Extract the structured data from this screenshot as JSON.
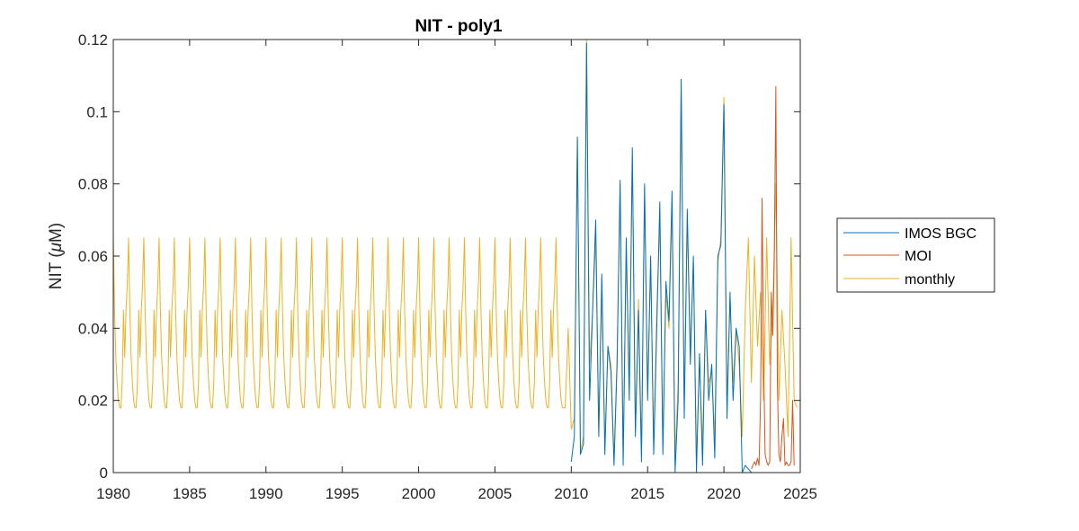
{
  "chart_data": {
    "type": "line",
    "title": "NIT - poly1",
    "ylabel": "NIT (μM)",
    "ylabel_parts": {
      "before": "NIT (",
      "mu": "μ",
      "after": "M)"
    },
    "xlabel": "",
    "xlim": [
      1980,
      2025
    ],
    "ylim": [
      0,
      0.12
    ],
    "x_ticks": [
      1980,
      1985,
      1990,
      1995,
      2000,
      2005,
      2010,
      2015,
      2020,
      2025
    ],
    "y_ticks": [
      0,
      0.02,
      0.04,
      0.06,
      0.08,
      0.1,
      0.12
    ],
    "y_tick_labels": [
      "0",
      "0.02",
      "0.04",
      "0.06",
      "0.08",
      "0.1",
      "0.12"
    ],
    "grid": false,
    "legend_position": "outside-right",
    "series": [
      {
        "name": "IMOS BGC",
        "color": "#0072BD",
        "x": [
          2010.0,
          2010.2,
          2010.4,
          2010.6,
          2010.8,
          2011.0,
          2011.2,
          2011.4,
          2011.6,
          2011.8,
          2012.0,
          2012.2,
          2012.4,
          2012.6,
          2012.8,
          2013.0,
          2013.2,
          2013.4,
          2013.6,
          2013.8,
          2014.0,
          2014.2,
          2014.4,
          2014.6,
          2014.8,
          2015.0,
          2015.2,
          2015.4,
          2015.6,
          2015.8,
          2016.0,
          2016.2,
          2016.4,
          2016.6,
          2016.8,
          2017.0,
          2017.2,
          2017.4,
          2017.6,
          2017.8,
          2018.0,
          2018.2,
          2018.4,
          2018.6,
          2018.8,
          2019.0,
          2019.2,
          2019.4,
          2019.6,
          2019.8,
          2020.0,
          2020.2,
          2020.4,
          2020.6,
          2020.8,
          2021.0,
          2021.2,
          2021.4,
          2021.6,
          2021.8
        ],
        "y": [
          0.003,
          0.01,
          0.093,
          0.005,
          0.008,
          0.119,
          0.02,
          0.045,
          0.07,
          0.01,
          0.055,
          0.005,
          0.035,
          0.028,
          0.002,
          0.03,
          0.081,
          0.002,
          0.065,
          0.02,
          0.09,
          0.01,
          0.045,
          0.003,
          0.08,
          0.02,
          0.06,
          0.005,
          0.04,
          0.075,
          0.005,
          0.053,
          0.042,
          0.078,
          0.0,
          0.02,
          0.109,
          0.015,
          0.073,
          0.03,
          0.06,
          0.0,
          0.033,
          0.002,
          0.045,
          0.02,
          0.03,
          0.004,
          0.06,
          0.063,
          0.102,
          0.015,
          0.05,
          0.02,
          0.04,
          0.035,
          0.0,
          0.002,
          0.001,
          0.0
        ]
      },
      {
        "name": "MOI",
        "color": "#D95319",
        "x": [
          2021.8,
          2022.0,
          2022.1,
          2022.2,
          2022.3,
          2022.4,
          2022.5,
          2022.6,
          2022.7,
          2022.8,
          2022.9,
          2023.0,
          2023.1,
          2023.2,
          2023.3,
          2023.4,
          2023.5,
          2023.6,
          2023.7,
          2023.8,
          2023.9,
          2024.0,
          2024.1,
          2024.2,
          2024.3,
          2024.4,
          2024.5,
          2024.6
        ],
        "y": [
          0.001,
          0.003,
          0.002,
          0.004,
          0.002,
          0.02,
          0.076,
          0.03,
          0.005,
          0.003,
          0.002,
          0.003,
          0.05,
          0.038,
          0.06,
          0.107,
          0.025,
          0.005,
          0.003,
          0.01,
          0.015,
          0.002,
          0.003,
          0.002,
          0.002,
          0.003,
          0.02,
          0.002
        ]
      },
      {
        "name": "monthly",
        "color": "#EDB120",
        "seasonal_cycle": [
          0.065,
          0.045,
          0.032,
          0.025,
          0.02,
          0.018,
          0.018,
          0.025,
          0.045,
          0.032,
          0.045,
          0.052
        ],
        "seasonal_start": 1980.0,
        "seasonal_end": 2009.5,
        "x": [
          2009.6,
          2009.8,
          2010.0,
          2010.2,
          2010.4,
          2010.6,
          2010.8,
          2011.0,
          2011.2,
          2011.4,
          2011.6,
          2011.8,
          2012.0,
          2012.2,
          2012.4,
          2012.6,
          2012.8,
          2013.0,
          2013.2,
          2013.4,
          2013.6,
          2013.8,
          2014.0,
          2014.2,
          2014.4,
          2014.6,
          2014.8,
          2015.0,
          2015.2,
          2015.4,
          2015.6,
          2015.8,
          2016.0,
          2016.2,
          2016.4,
          2016.6,
          2016.8,
          2017.0,
          2017.2,
          2017.4,
          2017.6,
          2017.8,
          2018.0,
          2018.2,
          2018.4,
          2018.6,
          2018.8,
          2019.0,
          2019.2,
          2019.4,
          2019.6,
          2019.8,
          2020.0,
          2020.2,
          2020.4,
          2020.6,
          2020.8,
          2021.0,
          2021.2,
          2021.4,
          2021.6,
          2021.8,
          2022.0,
          2022.2,
          2022.4,
          2022.6,
          2022.8,
          2023.0,
          2023.2,
          2023.4,
          2023.6,
          2023.8,
          2024.0,
          2024.2,
          2024.4,
          2024.6,
          2024.8
        ],
        "y": [
          0.018,
          0.04,
          0.012,
          0.015,
          0.092,
          0.006,
          0.01,
          0.12,
          0.03,
          0.045,
          0.065,
          0.012,
          0.05,
          0.008,
          0.035,
          0.03,
          0.004,
          0.032,
          0.08,
          0.005,
          0.06,
          0.025,
          0.088,
          0.012,
          0.048,
          0.006,
          0.079,
          0.022,
          0.058,
          0.008,
          0.045,
          0.07,
          0.008,
          0.05,
          0.04,
          0.074,
          0.004,
          0.025,
          0.107,
          0.02,
          0.07,
          0.035,
          0.058,
          0.005,
          0.03,
          0.008,
          0.045,
          0.025,
          0.028,
          0.01,
          0.058,
          0.065,
          0.104,
          0.02,
          0.048,
          0.025,
          0.04,
          0.03,
          0.01,
          0.045,
          0.065,
          0.025,
          0.06,
          0.035,
          0.05,
          0.02,
          0.065,
          0.03,
          0.045,
          0.08,
          0.02,
          0.045,
          0.03,
          0.01,
          0.065,
          0.02,
          0.018
        ]
      }
    ]
  }
}
